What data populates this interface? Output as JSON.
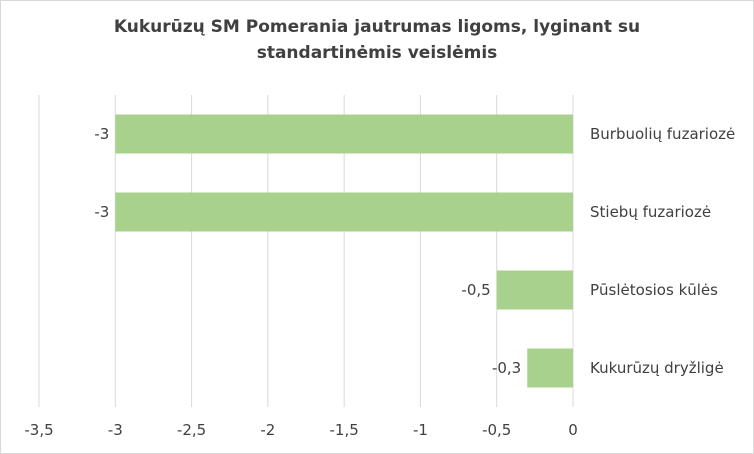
{
  "chart_data": {
    "type": "bar",
    "orientation": "horizontal",
    "title": "Kukurūzų SM Pomerania jautrumas ligoms, lyginant su standartinėmis veislėmis",
    "categories": [
      "Burbuolių fuzariozė",
      "Stiebų fuzariozė",
      "Pūslėtosios kūlės",
      "Kukurūzų dryžligė"
    ],
    "values": [
      -3,
      -3,
      -0.5,
      -0.3
    ],
    "data_labels": [
      "-3",
      "-3",
      "-0,5",
      "-0,3"
    ],
    "xlim": [
      -3.5,
      0
    ],
    "x_ticks": [
      -3.5,
      -3,
      -2.5,
      -2,
      -1.5,
      -1,
      -0.5,
      0
    ],
    "x_tick_labels": [
      "-3,5",
      "-3",
      "-2,5",
      "-2",
      "-1,5",
      "-1",
      "-0,5",
      "0"
    ],
    "xlabel": "",
    "ylabel": "",
    "grid": "vertical",
    "legend": "none",
    "colors": {
      "bar": "#a9d18e",
      "grid": "#d9d9d9",
      "text": "#404040"
    }
  }
}
